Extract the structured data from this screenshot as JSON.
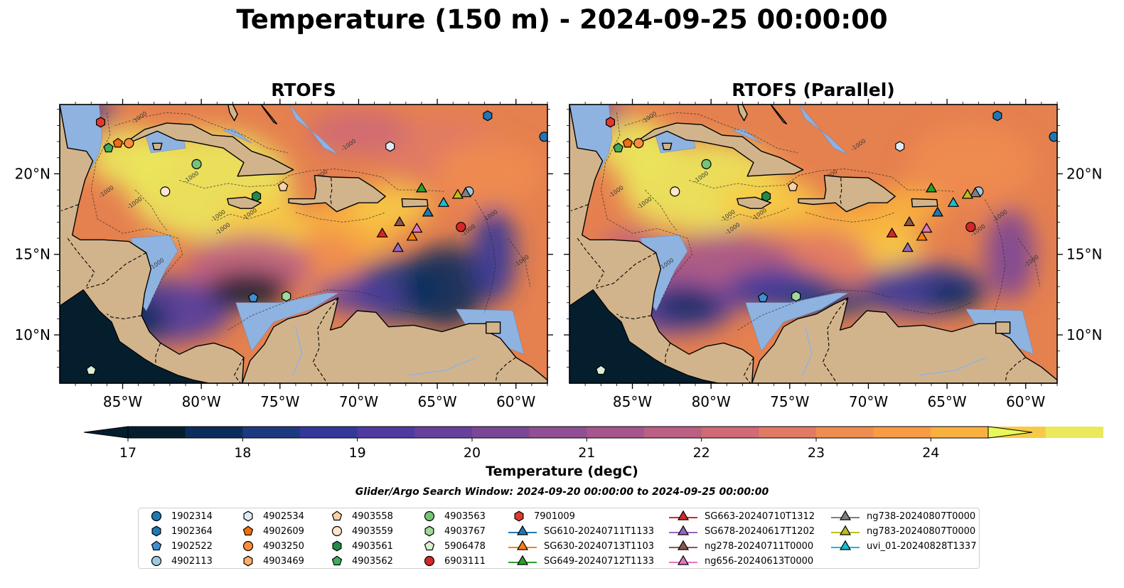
{
  "title": "Temperature (150 m) - 2024-09-25 00:00:00",
  "panels": [
    {
      "id": "rtofs",
      "title": "RTOFS"
    },
    {
      "id": "rtofs-parallel",
      "title": "RTOFS (Parallel)"
    }
  ],
  "map": {
    "lon_range": [
      -89,
      -58
    ],
    "lat_range": [
      7,
      24.3
    ],
    "lon_ticks": [
      {
        "value": -85,
        "label": "85°W"
      },
      {
        "value": -80,
        "label": "80°W"
      },
      {
        "value": -75,
        "label": "75°W"
      },
      {
        "value": -70,
        "label": "70°W"
      },
      {
        "value": -65,
        "label": "65°W"
      },
      {
        "value": -60,
        "label": "60°W"
      }
    ],
    "lat_ticks": [
      {
        "value": 10,
        "label": "10°N"
      },
      {
        "value": 15,
        "label": "15°N"
      },
      {
        "value": 20,
        "label": "20°N"
      }
    ],
    "contour_label": "-1000",
    "colors": {
      "land": "#d2b48c",
      "shelf": "#8fb3e0",
      "coastline": "#000000",
      "border": "#000000"
    }
  },
  "colorbar": {
    "label": "Temperature (degC)",
    "min": 17,
    "max": 24.5,
    "step": 0.5,
    "ticks": [
      "17",
      "18",
      "19",
      "20",
      "21",
      "22",
      "23",
      "24"
    ],
    "extend": "both",
    "colors": [
      "#041e2e",
      "#0b2d5b",
      "#1d3a80",
      "#33389a",
      "#4f3aa0",
      "#67409d",
      "#7a4797",
      "#8f4f92",
      "#a6568c",
      "#bb5f83",
      "#cf6a76",
      "#e17a64",
      "#ef8c50",
      "#f89c43",
      "#f9b13e",
      "#f7ca46",
      "#ebe85c"
    ],
    "under_color": "#041e2e",
    "over_color": "#e8f85a"
  },
  "search_window": "Glider/Argo Search Window: 2024-09-20 00:00:00 to 2024-09-25 00:00:00",
  "legend": {
    "columns": [
      [
        {
          "label": "1902314",
          "marker": "circle",
          "color": "#1f77b4"
        },
        {
          "label": "1902364",
          "marker": "hexagon",
          "color": "#1f77b4"
        },
        {
          "label": "1902522",
          "marker": "pentagon",
          "color": "#3f8fd2"
        },
        {
          "label": "4902113",
          "marker": "circle",
          "color": "#9ecae1"
        }
      ],
      [
        {
          "label": "4902534",
          "marker": "hexagon",
          "color": "#deebf7"
        },
        {
          "label": "4902609",
          "marker": "pentagon",
          "color": "#f46d0c"
        },
        {
          "label": "4903250",
          "marker": "circle",
          "color": "#fd8d3c"
        },
        {
          "label": "4903469",
          "marker": "hexagon",
          "color": "#fdae6b"
        }
      ],
      [
        {
          "label": "4903558",
          "marker": "pentagon",
          "color": "#fdd0a2"
        },
        {
          "label": "4903559",
          "marker": "circle",
          "color": "#fee6ce"
        },
        {
          "label": "4903561",
          "marker": "hexagon",
          "color": "#238b45"
        },
        {
          "label": "4903562",
          "marker": "pentagon",
          "color": "#41ab5d"
        }
      ],
      [
        {
          "label": "4903563",
          "marker": "circle",
          "color": "#74c476"
        },
        {
          "label": "4903767",
          "marker": "hexagon",
          "color": "#a1d99b"
        },
        {
          "label": "5906478",
          "marker": "pentagon",
          "color": "#d9f0d3"
        },
        {
          "label": "6903111",
          "marker": "circle",
          "color": "#d62728"
        }
      ],
      [
        {
          "label": "7901009",
          "marker": "hexagon",
          "color": "#e03a2f"
        },
        {
          "label": "SG610-20240711T1133",
          "marker": "triangle",
          "color": "#1f77b4"
        },
        {
          "label": "SG630-20240713T1103",
          "marker": "triangle",
          "color": "#ff7f0e"
        },
        {
          "label": "SG649-20240712T1133",
          "marker": "triangle",
          "color": "#2ca02c"
        }
      ],
      [
        {
          "label": "SG663-20240710T1312",
          "marker": "triangle",
          "color": "#d62728"
        },
        {
          "label": "SG678-20240617T1202",
          "marker": "triangle",
          "color": "#9467bd"
        },
        {
          "label": "ng278-20240711T0000",
          "marker": "triangle",
          "color": "#8c564b"
        },
        {
          "label": "ng656-20240613T0000",
          "marker": "triangle",
          "color": "#e377c2"
        }
      ],
      [
        {
          "label": "ng738-20240807T0000",
          "marker": "triangle",
          "color": "#7f7f7f"
        },
        {
          "label": "ng783-20240807T0000",
          "marker": "triangle",
          "color": "#bcbd22"
        },
        {
          "label": "uvi_01-20240828T1337",
          "marker": "triangle",
          "color": "#17becf"
        }
      ]
    ]
  },
  "platforms": [
    {
      "label": "1902314",
      "lon": -58.2,
      "lat": 22.3
    },
    {
      "label": "1902364",
      "lon": -61.8,
      "lat": 23.6
    },
    {
      "label": "1902522",
      "lon": -76.7,
      "lat": 12.3
    },
    {
      "label": "4902113",
      "lon": -63.0,
      "lat": 18.9
    },
    {
      "label": "4902534",
      "lon": -68.0,
      "lat": 21.7
    },
    {
      "label": "4902609",
      "lon": -85.3,
      "lat": 21.9
    },
    {
      "label": "4903250",
      "lon": -84.6,
      "lat": 21.9
    },
    {
      "label": "4903469",
      "lon": -86.4,
      "lat": 23.2
    },
    {
      "label": "4903558",
      "lon": -74.8,
      "lat": 19.2
    },
    {
      "label": "4903559",
      "lon": -82.3,
      "lat": 18.9
    },
    {
      "label": "4903561",
      "lon": -76.5,
      "lat": 18.6
    },
    {
      "label": "4903562",
      "lon": -85.9,
      "lat": 21.6
    },
    {
      "label": "4903563",
      "lon": -80.3,
      "lat": 20.6
    },
    {
      "label": "4903767",
      "lon": -74.6,
      "lat": 12.4
    },
    {
      "label": "5906478",
      "lon": -87.0,
      "lat": 7.8
    },
    {
      "label": "6903111",
      "lon": -63.5,
      "lat": 16.7
    },
    {
      "label": "7901009",
      "lon": -86.4,
      "lat": 23.2
    },
    {
      "label": "SG610-20240711T1133",
      "lon": -65.6,
      "lat": 17.6
    },
    {
      "label": "SG630-20240713T1103",
      "lon": -66.6,
      "lat": 16.1
    },
    {
      "label": "SG649-20240712T1133",
      "lon": -66.0,
      "lat": 19.1
    },
    {
      "label": "SG663-20240710T1312",
      "lon": -68.5,
      "lat": 16.3
    },
    {
      "label": "SG678-20240617T1202",
      "lon": -67.5,
      "lat": 15.4
    },
    {
      "label": "ng278-20240711T0000",
      "lon": -67.4,
      "lat": 17.0
    },
    {
      "label": "ng656-20240613T0000",
      "lon": -66.3,
      "lat": 16.6
    },
    {
      "label": "ng738-20240807T0000",
      "lon": -63.2,
      "lat": 18.8
    },
    {
      "label": "ng783-20240807T0000",
      "lon": -63.7,
      "lat": 18.7
    },
    {
      "label": "uvi_01-20240828T1337",
      "lon": -64.6,
      "lat": 18.2
    }
  ]
}
